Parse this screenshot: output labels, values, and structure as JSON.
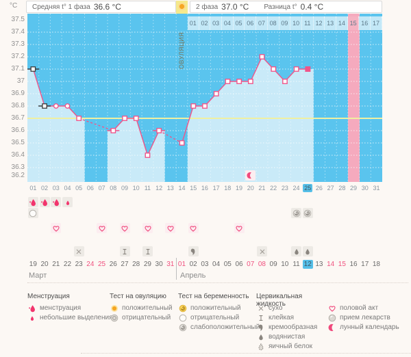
{
  "header": {
    "unit": "°C",
    "phase1_label": "Средняя t° 1 фаза",
    "phase1_value": "36.6 °C",
    "phase2_label": "2 фаза",
    "phase2_value": "37.0 °C",
    "diff_label": "Разница t°",
    "diff_value": "0.4 °C"
  },
  "chart_data": {
    "type": "line",
    "ylabel": "°C",
    "ylim": [
      36.2,
      37.5
    ],
    "ytick_labels": [
      "37.5",
      "37.4",
      "37.3",
      "37.2",
      "37.1",
      "37",
      "36.9",
      "36.8",
      "36.7",
      "36.6",
      "36.5",
      "36.4",
      "36.3",
      "36.2"
    ],
    "cycle_day_count": 31,
    "temperatures": [
      37.1,
      36.8,
      36.8,
      36.8,
      36.7,
      null,
      null,
      36.6,
      36.7,
      36.7,
      36.4,
      36.6,
      null,
      36.5,
      36.8,
      36.8,
      36.9,
      37.0,
      37.0,
      37.0,
      37.2,
      37.1,
      37.0,
      37.1,
      37.1,
      null,
      null,
      null,
      null,
      null,
      null
    ],
    "coverline": 36.7,
    "ovulation_day": 14,
    "ovulation_label": "ОВУЛЯЦИЯ",
    "today_day": 25,
    "predicted_period_day": 29,
    "dpo_count": 17,
    "dpo_highlight": 15,
    "phase1_avg": 36.6,
    "phase2_avg": 37.0,
    "difference": 0.4,
    "moon_day": 20,
    "markers": {
      "1": "square-black",
      "2": "square-black",
      "3": "circle",
      "4": "circle",
      "25": "filled"
    },
    "tick_marks": {
      "1": "#3a3a3a",
      "2": "#3a3a3a",
      "8": "#f0558a",
      "12": "#f0558a"
    },
    "legend_position": "bottom",
    "grid": "on"
  },
  "calendar": {
    "dates": [
      "19",
      "20",
      "21",
      "22",
      "23",
      "24",
      "25",
      "26",
      "27",
      "28",
      "29",
      "30",
      "31",
      "01",
      "02",
      "03",
      "04",
      "05",
      "06",
      "07",
      "08",
      "09",
      "10",
      "11",
      "12",
      "13",
      "14",
      "15",
      "16",
      "17",
      "18"
    ],
    "weekend_indices": [
      6,
      7,
      13,
      14,
      20,
      21,
      27,
      28
    ],
    "today_index": 25,
    "months": [
      {
        "label": "Март"
      },
      {
        "label": "Апрель"
      }
    ]
  },
  "grid_rows": [
    {
      "name": "menstruation",
      "icons": {
        "1": "drop-big",
        "2": "drop-big",
        "3": "drop-big",
        "4": "drop-small"
      }
    },
    {
      "name": "tests",
      "icons": {
        "1": "preg-negative",
        "24": "preg-weak",
        "25": "preg-weak"
      }
    },
    {
      "name": "intercourse",
      "icons": {
        "3": "heart",
        "7": "heart",
        "9": "heart",
        "11": "heart",
        "13": "heart",
        "15": "heart",
        "19": "heart"
      }
    },
    {
      "name": "medication",
      "icons": {}
    },
    {
      "name": "cervical-fluid",
      "icons": {
        "5": "dry",
        "9": "sticky",
        "11": "sticky",
        "15": "creamy",
        "21": "dry",
        "24": "watery",
        "25": "watery"
      }
    }
  ],
  "legend": {
    "groups": [
      {
        "title": "Менструация",
        "items": [
          {
            "icon": "drop-big",
            "label": "менструация"
          },
          {
            "icon": "drop-small",
            "label": "небольшие выделения"
          }
        ]
      },
      {
        "title": "Тест на овуляцию",
        "items": [
          {
            "icon": "ovu-positive",
            "label": "положительный"
          },
          {
            "icon": "ovu-negative",
            "label": "отрицательный"
          }
        ]
      },
      {
        "title": "Тест на беременность",
        "items": [
          {
            "icon": "preg-positive",
            "label": "положительный"
          },
          {
            "icon": "preg-negative",
            "label": "отрицательный"
          },
          {
            "icon": "preg-weak",
            "label": "слабоположительный"
          }
        ]
      },
      {
        "title": "Цервикальная жидкость",
        "items": [
          {
            "icon": "dry",
            "label": "сухо"
          },
          {
            "icon": "sticky",
            "label": "клейкая"
          },
          {
            "icon": "creamy",
            "label": "кремообразная"
          },
          {
            "icon": "watery",
            "label": "водянистая"
          },
          {
            "icon": "eggwhite",
            "label": "яичный белок"
          }
        ]
      },
      {
        "title": "",
        "items": [
          {
            "icon": "heart",
            "label": "половой акт"
          },
          {
            "icon": "pill",
            "label": "прием лекарств"
          },
          {
            "icon": "moon",
            "label": "лунный календарь"
          }
        ]
      }
    ]
  },
  "colors": {
    "accent_blue": "#55bfe8",
    "chart_bg": "#5ac4ee",
    "chart_fill": "#c9eaf8",
    "line_pink": "#f0558a",
    "coverline_yellow": "#f0f0a0",
    "ovulation_band": "#f5e98c",
    "ovulation_band_light": "#fbf3c4",
    "period_band": "#f5aabe",
    "weekend_red": "#f0517f",
    "menstruation_red": "#f2356d"
  }
}
